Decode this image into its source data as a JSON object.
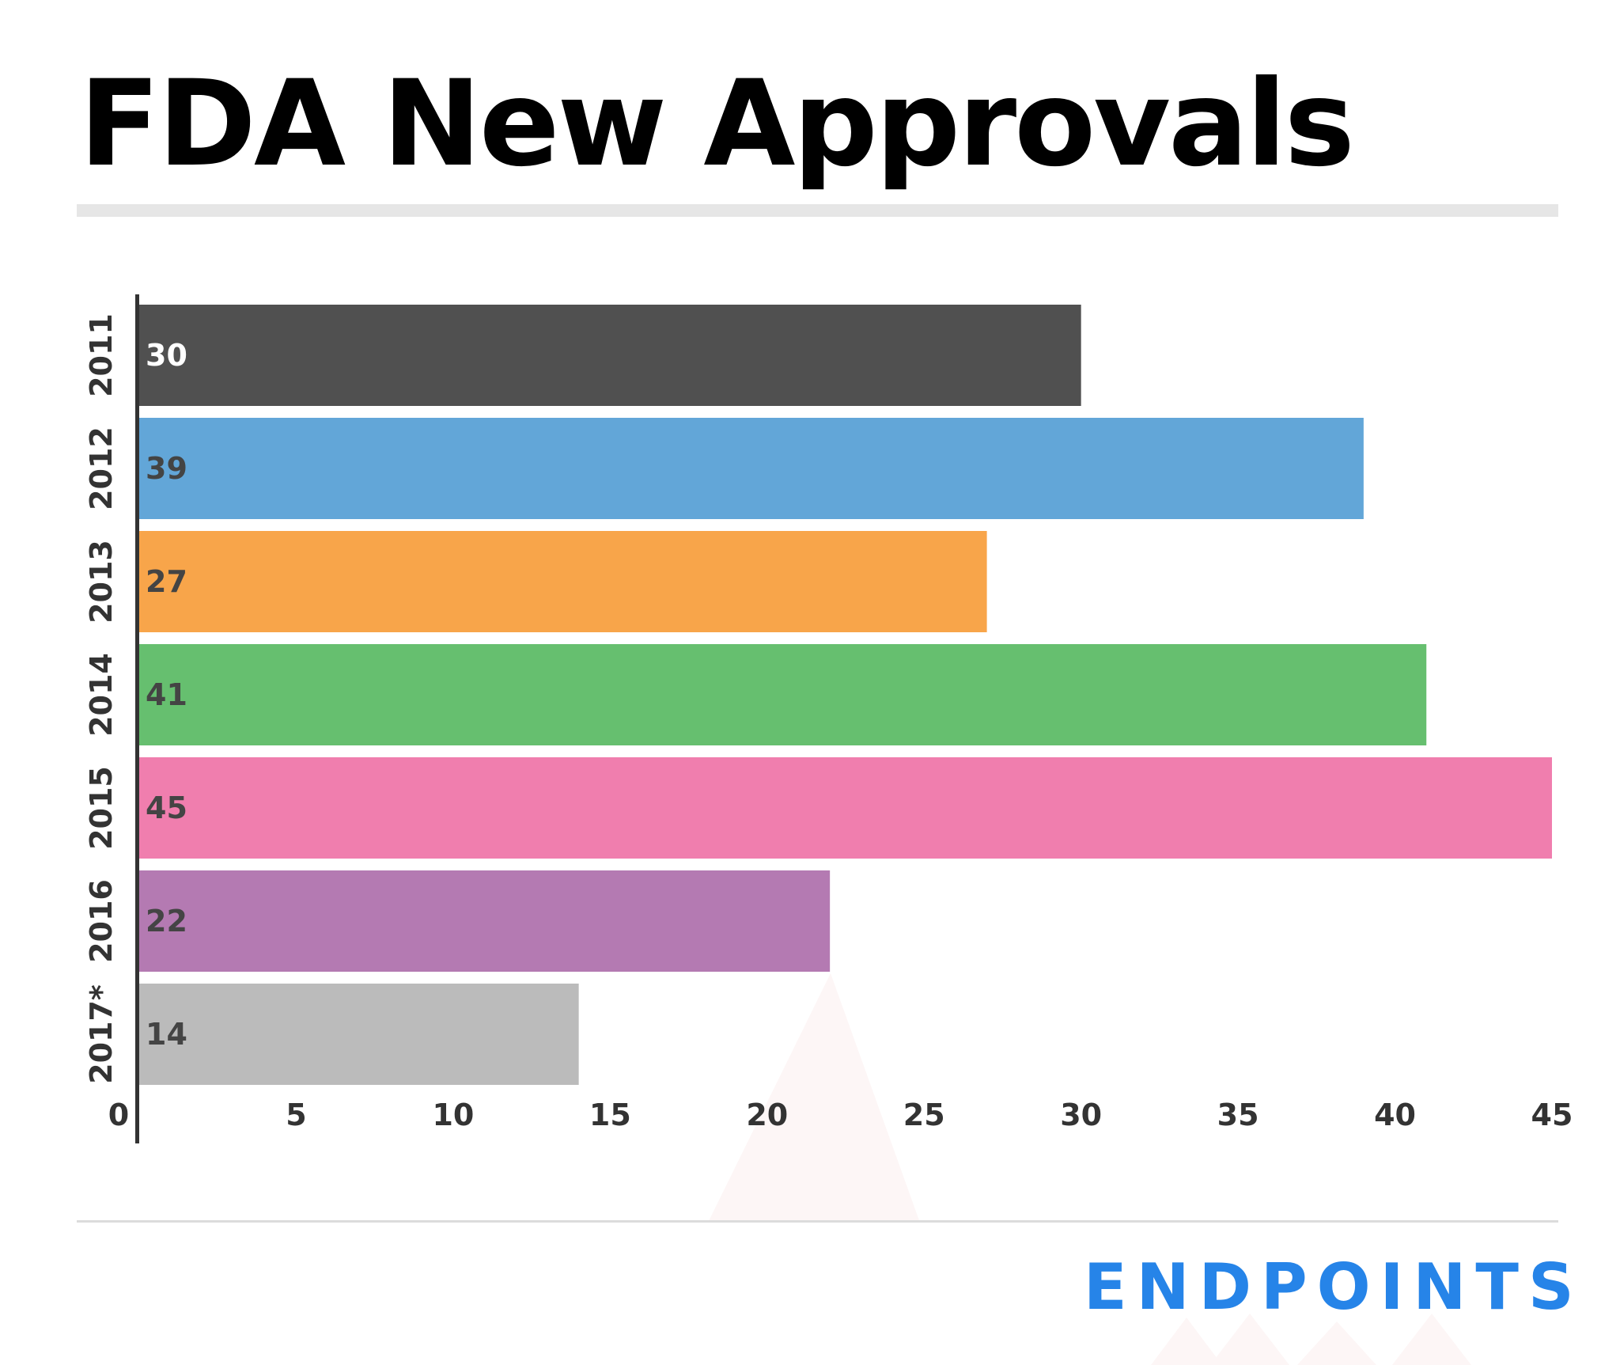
{
  "header": {
    "title": "FDA New Approvals"
  },
  "footer": {
    "brand": "ENDPOINTS"
  },
  "colors": {
    "title": "#000000",
    "separator": "#e6e6e6",
    "footer_rule": "#dcdcdc",
    "axis": "#333333",
    "tick_label": "#333333",
    "label_dark": "#444444",
    "label_light": "#ffffff",
    "brand": "#2684e8"
  },
  "chart_data": {
    "type": "bar",
    "orientation": "horizontal",
    "categories": [
      "2011",
      "2012",
      "2013",
      "2014",
      "2015",
      "2016",
      "2017*"
    ],
    "values": [
      30,
      39,
      27,
      41,
      45,
      22,
      14
    ],
    "data_labels": [
      "30",
      "39",
      "27",
      "41",
      "45",
      "22",
      "14"
    ],
    "bar_colors": [
      "#505050",
      "#62a6d8",
      "#f8a54a",
      "#66bf6f",
      "#f07eae",
      "#b47ab2",
      "#bbbbbb"
    ],
    "xlim": [
      0,
      45
    ],
    "xticks": [
      "0",
      "5",
      "10",
      "15",
      "20",
      "25",
      "30",
      "35",
      "40",
      "45"
    ],
    "grid": false,
    "legend": false
  }
}
